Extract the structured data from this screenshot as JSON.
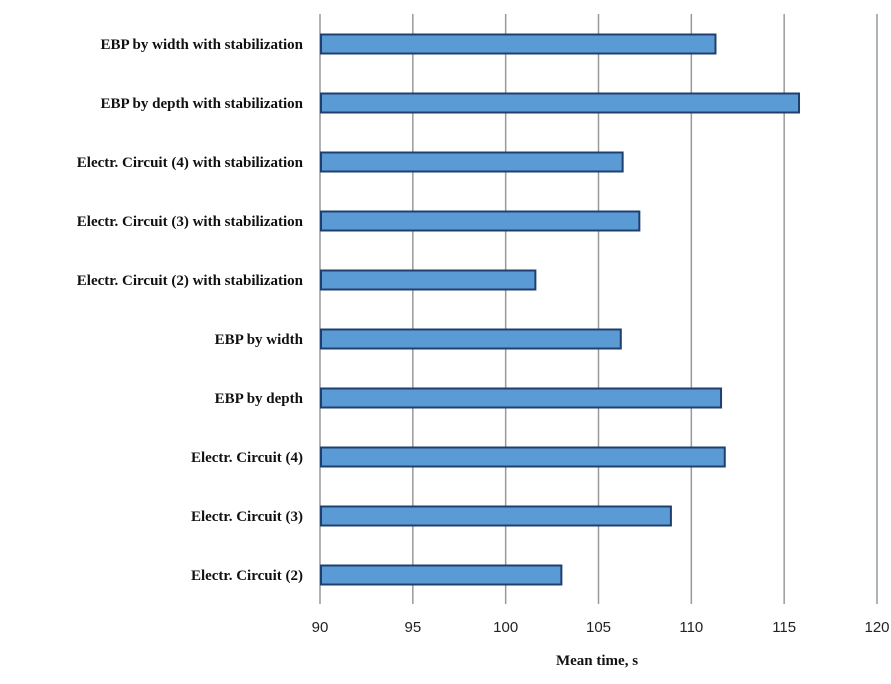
{
  "chart_data": {
    "type": "bar",
    "orientation": "horizontal",
    "categories": [
      "EBP by width with stabilization",
      "EBP by depth with stabilization",
      "Electr. Circuit (4) with stabilization",
      "Electr. Circuit (3) with stabilization",
      "Electr. Circuit (2) with stabilization",
      "EBP by width",
      "EBP by depth",
      "Electr. Circuit (4)",
      "Electr. Circuit (3)",
      "Electr. Circuit (2)"
    ],
    "values": [
      111.3,
      115.8,
      106.3,
      107.2,
      101.6,
      106.2,
      111.6,
      111.8,
      108.9,
      103.0
    ],
    "title": "",
    "xlabel": "Mean time, s",
    "ylabel": "",
    "xlim": [
      90,
      120
    ],
    "xticks": [
      90,
      95,
      100,
      105,
      110,
      115,
      120
    ],
    "grid": true,
    "legend": "none",
    "bar_color": "#5b9bd5",
    "bar_edge_color": "#1f3f6e"
  }
}
